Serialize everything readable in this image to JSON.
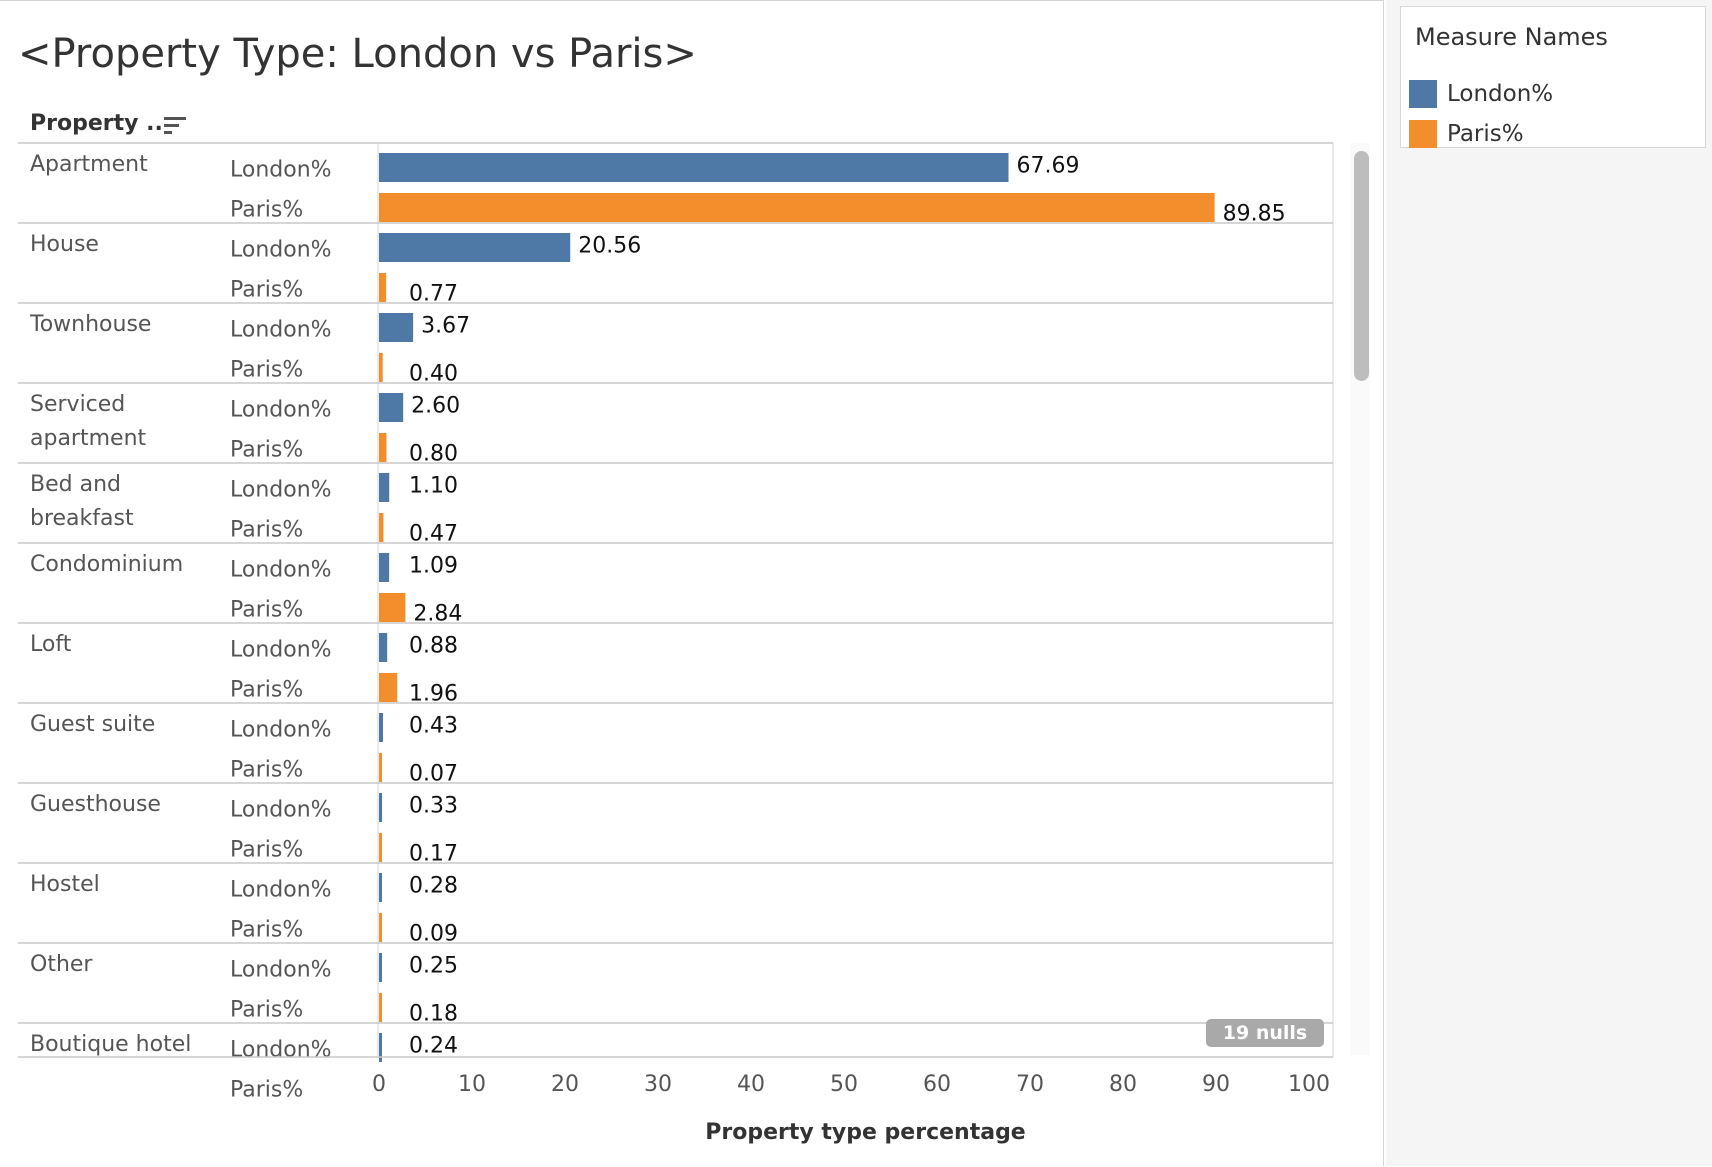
{
  "title": "<Property Type: London vs Paris>",
  "row_header": "Property ..",
  "legend": {
    "title": "Measure Names",
    "items": [
      {
        "label": "London%",
        "color": "#4e79a7"
      },
      {
        "label": "Paris%",
        "color": "#f28e2b"
      }
    ]
  },
  "nulls_badge": "19 nulls",
  "chart_data": {
    "type": "bar",
    "orientation": "horizontal",
    "categories": [
      [
        "Apartment"
      ],
      [
        "House"
      ],
      [
        "Townhouse"
      ],
      [
        "Serviced",
        "apartment"
      ],
      [
        "Bed and",
        "breakfast"
      ],
      [
        "Condominium"
      ],
      [
        "Loft"
      ],
      [
        "Guest suite"
      ],
      [
        "Guesthouse"
      ],
      [
        "Hostel"
      ],
      [
        "Other"
      ],
      [
        "Boutique hotel"
      ]
    ],
    "series": [
      {
        "name": "London%",
        "color": "#4e79a7",
        "values": [
          67.69,
          20.56,
          3.67,
          2.6,
          1.1,
          1.09,
          0.88,
          0.43,
          0.33,
          0.28,
          0.25,
          0.24
        ],
        "labels": [
          "67.69",
          "20.56",
          "3.67",
          "2.60",
          "1.10",
          "1.09",
          "0.88",
          "0.43",
          "0.33",
          "0.28",
          "0.25",
          "0.24"
        ]
      },
      {
        "name": "Paris%",
        "color": "#f28e2b",
        "values": [
          89.85,
          0.77,
          0.4,
          0.8,
          0.47,
          2.84,
          1.96,
          0.07,
          0.17,
          0.09,
          0.18,
          null
        ],
        "labels": [
          "89.85",
          "0.77",
          "0.40",
          "0.80",
          "0.47",
          "2.84",
          "1.96",
          "0.07",
          "0.17",
          "0.09",
          "0.18",
          ""
        ]
      }
    ],
    "xlabel": "Property type percentage",
    "xlim": [
      0,
      100
    ],
    "xticks": [
      0,
      10,
      20,
      30,
      40,
      50,
      60,
      70,
      80,
      90,
      100
    ],
    "grid": false,
    "legend_position": "top-right"
  }
}
